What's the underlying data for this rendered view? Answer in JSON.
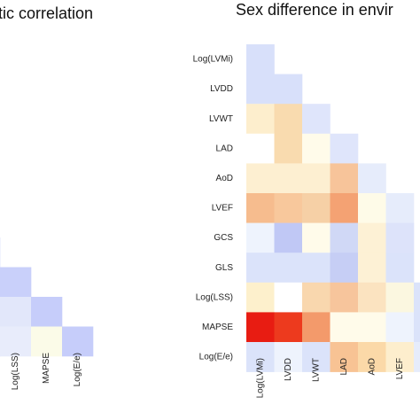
{
  "chart_data": [
    {
      "type": "heatmap",
      "title": "tic correlation",
      "x_tick_labels": [
        "Log(LSS)",
        "MAPSE",
        "Log(E/e)"
      ],
      "rows": [
        {
          "label": "",
          "cells": [
            "#d6dcfa"
          ]
        },
        {
          "label": "",
          "cells": [
            "#c9d0fa",
            "#c9d0fa"
          ]
        },
        {
          "label": "",
          "cells": [
            "#e2e7fa",
            "#e2e7fa",
            "#c6cdfa"
          ]
        },
        {
          "label": "",
          "cells": [
            "#c6cdfa",
            "#e8ecfb",
            "#fbfbe8",
            "#c6cdfa"
          ]
        }
      ]
    },
    {
      "type": "heatmap",
      "title": "Sex difference in envir",
      "y_tick_labels": [
        "Log(LVMi)",
        "LVDD",
        "LVWT",
        "LAD",
        "AoD",
        "LVEF",
        "GCS",
        "GLS",
        "Log(LSS)",
        "MAPSE",
        "Log(E/e)"
      ],
      "x_tick_labels": [
        "Log(LVMi)",
        "LVDD",
        "LVWT",
        "LAD",
        "AoD",
        "LVEF"
      ],
      "rows": [
        {
          "label": "Log(LVMi)",
          "cells": [
            "#d8e0fa"
          ]
        },
        {
          "label": "LVDD",
          "cells": [
            "#d8e0fa",
            "#d8e0fa"
          ]
        },
        {
          "label": "LVWT",
          "cells": [
            "#fdeecd",
            "#f9dbaf",
            "#dfe5fb"
          ]
        },
        {
          "label": "LAD",
          "cells": [
            "#ffffff",
            "#f9dbaf",
            "#fffbea",
            "#dfe5fb"
          ]
        },
        {
          "label": "AoD",
          "cells": [
            "#fdefd1",
            "#fdefd1",
            "#fdefd1",
            "#f7c49a",
            "#e6ecfb"
          ]
        },
        {
          "label": "LVEF",
          "cells": [
            "#f6bc8e",
            "#f8c89c",
            "#f6d0a6",
            "#f4a273",
            "#fefbe8",
            "#e6ecfb"
          ]
        },
        {
          "label": "GCS",
          "cells": [
            "#eef3fd",
            "#c0c8f5",
            "#fffbea",
            "#d0d8f6",
            "#fdf1d5",
            "#dde3fa"
          ]
        },
        {
          "label": "GLS",
          "cells": [
            "#dbe3fa",
            "#dbe3fa",
            "#dbe3fa",
            "#c6cef5",
            "#fdf1d5",
            "#dbe3fa"
          ]
        },
        {
          "label": "Log(LSS)",
          "cells": [
            "#fdf0cc",
            "#ffffff",
            "#f9d7ae",
            "#f7c59c",
            "#fbe3c0",
            "#fbf7e0",
            "#dbe3fa"
          ]
        },
        {
          "label": "MAPSE",
          "cells": [
            "#e81c12",
            "#ed3a1e",
            "#f39a6b",
            "#fffbea",
            "#fffbea",
            "#eef3fd",
            "#dbe3fa"
          ]
        },
        {
          "label": "Log(E/e)",
          "cells": [
            "#dbe3fa",
            "#eef3fd",
            "#dbe3fa",
            "#f8c394",
            "#fbd9a8",
            "#fdeecd",
            "#e6ecfb"
          ]
        }
      ]
    }
  ]
}
